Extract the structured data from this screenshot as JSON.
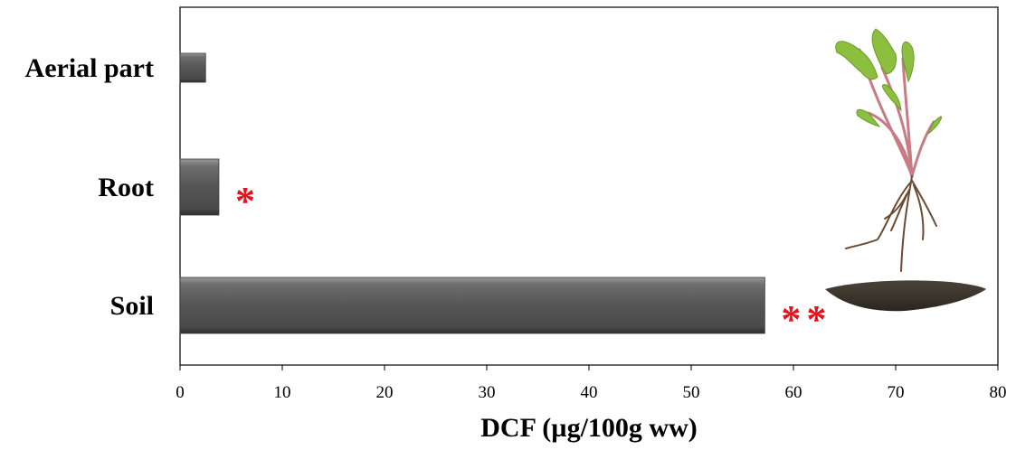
{
  "chart_data": {
    "type": "bar",
    "orientation": "horizontal",
    "categories": [
      "Aerial part",
      "Root",
      "Soil"
    ],
    "values": [
      2.5,
      3.8,
      57.2
    ],
    "annotations": [
      "",
      "*",
      "**"
    ],
    "xlabel": "DCF (µg/100g ww)",
    "ylabel": "",
    "xlim": [
      0,
      80
    ],
    "xticks": [
      0,
      10,
      20,
      30,
      40,
      50,
      60,
      70,
      80
    ],
    "grid": false,
    "bar_color": "#5a5a5a",
    "annotation_color": "#e8121b",
    "illustration": "dandelion-plant-with-roots-and-soil"
  }
}
